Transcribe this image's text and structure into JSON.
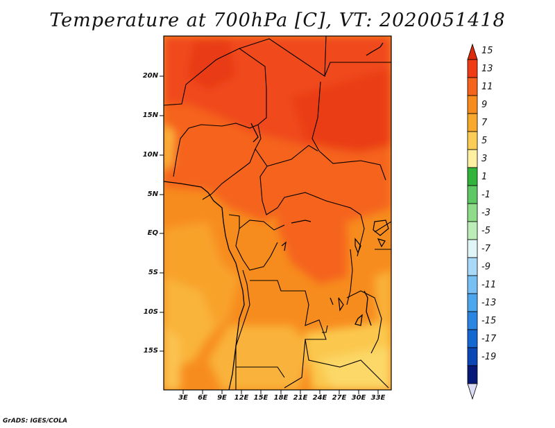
{
  "title": "Temperature at 700hPa [C], VT: 2020051418",
  "credit": "GrADS: IGES/COLA",
  "map": {
    "region": "Central Africa",
    "lon_range": [
      0,
      35
    ],
    "lat_range": [
      -20,
      24
    ],
    "lat_labels": [
      "20N",
      "15N",
      "10N",
      "5N",
      "EQ",
      "5S",
      "10S",
      "15S"
    ],
    "lon_labels": [
      "3E",
      "6E",
      "9E",
      "12E",
      "15E",
      "18E",
      "21E",
      "24E",
      "27E",
      "30E",
      "33E"
    ]
  },
  "colorbar": {
    "labels": [
      "15",
      "13",
      "11",
      "9",
      "7",
      "5",
      "3",
      "1",
      "-1",
      "-3",
      "-5",
      "-7",
      "-9",
      "-11",
      "-13",
      "-15",
      "-17",
      "-19"
    ],
    "colors": [
      "#f03c14",
      "#f5641c",
      "#f78c1e",
      "#f8a82c",
      "#fbcd56",
      "#fdf0a0",
      "#32b43c",
      "#5ec864",
      "#8edc8a",
      "#bcecb8",
      "#e0f6f6",
      "#a8daf8",
      "#78c0f4",
      "#4ca6ee",
      "#2a86e0",
      "#1468d2",
      "#0a46b4",
      "#061878"
    ],
    "top_triangle_color": "#dc2a0c",
    "bottom_triangle_color": "#dcdcf6"
  }
}
